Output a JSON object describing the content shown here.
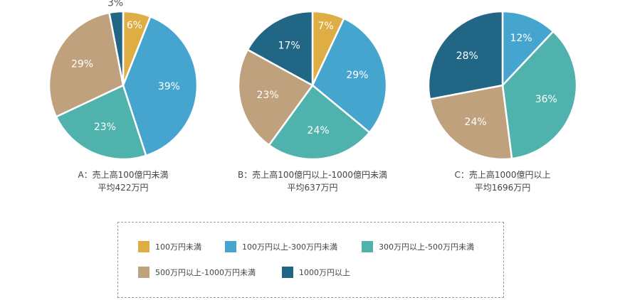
{
  "colors": {
    "under_100": "#DEAE45",
    "100_300": "#45A5CF",
    "300_500": "#50B2AC",
    "500_1000": "#BFA17D",
    "over_1000": "#216785"
  },
  "legend": [
    {
      "key": "under_100",
      "label": "100万円未満"
    },
    {
      "key": "100_300",
      "label": "100万円以上-300万円未満"
    },
    {
      "key": "300_500",
      "label": "300万円以上-500万円未満"
    },
    {
      "key": "500_1000",
      "label": "500万円以上-1000万円未満"
    },
    {
      "key": "over_1000",
      "label": "1000万円以上"
    }
  ],
  "chart_data": [
    {
      "type": "pie",
      "title": "A：売上高100億円未満",
      "subtitle": "平均422万円",
      "slices": [
        {
          "key": "under_100",
          "label": "100万円未満",
          "value": 6,
          "text": "6%"
        },
        {
          "key": "100_300",
          "label": "100万円以上-300万円未満",
          "value": 39,
          "text": "39%"
        },
        {
          "key": "300_500",
          "label": "300万円以上-500万円未満",
          "value": 23,
          "text": "23%"
        },
        {
          "key": "500_1000",
          "label": "500万円以上-1000万円未満",
          "value": 29,
          "text": "29%"
        },
        {
          "key": "over_1000",
          "label": "1000万円以上",
          "value": 3,
          "text": "3%"
        }
      ]
    },
    {
      "type": "pie",
      "title": "B：売上高100億円以上-1000億円未満",
      "subtitle": "平均637万円",
      "slices": [
        {
          "key": "under_100",
          "label": "100万円未満",
          "value": 7,
          "text": "7%"
        },
        {
          "key": "100_300",
          "label": "100万円以上-300万円未満",
          "value": 29,
          "text": "29%"
        },
        {
          "key": "300_500",
          "label": "300万円以上-500万円未満",
          "value": 24,
          "text": "24%"
        },
        {
          "key": "500_1000",
          "label": "500万円以上-1000万円未満",
          "value": 23,
          "text": "23%"
        },
        {
          "key": "over_1000",
          "label": "1000万円以上",
          "value": 17,
          "text": "17%"
        }
      ]
    },
    {
      "type": "pie",
      "title": "C：売上高1000億円以上",
      "subtitle": "平均1696万円",
      "slices": [
        {
          "key": "under_100",
          "label": "100万円未満",
          "value": 0,
          "text": ""
        },
        {
          "key": "100_300",
          "label": "100万円以上-300万円未満",
          "value": 12,
          "text": "12%"
        },
        {
          "key": "300_500",
          "label": "300万円以上-500万円未満",
          "value": 36,
          "text": "36%"
        },
        {
          "key": "500_1000",
          "label": "500万円以上-1000万円未満",
          "value": 24,
          "text": "24%"
        },
        {
          "key": "over_1000",
          "label": "1000万円以上",
          "value": 28,
          "text": "28%"
        }
      ]
    }
  ]
}
